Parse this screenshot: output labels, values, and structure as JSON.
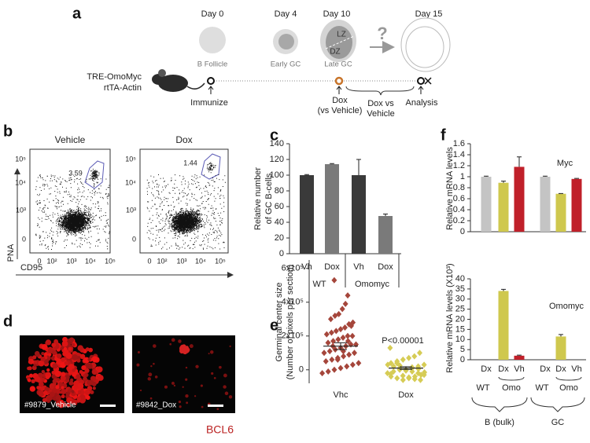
{
  "panel_labels": [
    "a",
    "b",
    "c",
    "d",
    "e",
    "f"
  ],
  "schematic": {
    "days": [
      "Day 0",
      "Day 4",
      "Day 10",
      "Day 15"
    ],
    "stages": [
      "B Follicle",
      "Early GC",
      "Late GC"
    ],
    "zones": [
      "LZ",
      "DZ"
    ],
    "question": "?",
    "mouse_lines": [
      "TRE-OmoMyc",
      "rtTA-Actin"
    ],
    "events": [
      "Immunize",
      "Dox",
      "(vs Vehicle)",
      "Dox vs",
      "Vehicle",
      "Analysis"
    ]
  },
  "flow": {
    "titles": [
      "Vehicle",
      "Dox"
    ],
    "gate_values": [
      "3.59",
      "1.44"
    ],
    "y_axis": "PNA",
    "x_axis": "CD95",
    "yticks": [
      "10⁵",
      "10⁴",
      "10³",
      "0"
    ],
    "xticks": [
      "0",
      "10²",
      "10³",
      "10⁴",
      "10⁵"
    ]
  },
  "images": {
    "captions": [
      "#9879_Vehicle",
      "#9842_Dox"
    ],
    "stain": "BCL6"
  },
  "chart_data": [
    {
      "type": "bar",
      "ylabel": [
        "Relative number",
        "of GC B-cells"
      ],
      "ylim": [
        0,
        140
      ],
      "yticks": [
        0,
        20,
        40,
        60,
        80,
        100,
        120,
        140
      ],
      "groups": [
        {
          "label": "WT",
          "categories": [
            "Vh",
            "Dox"
          ],
          "values": [
            100,
            114
          ],
          "errors": [
            0.8,
            0.8
          ],
          "colors": [
            "#3a3a3a",
            "#7a7a7a"
          ]
        },
        {
          "label": "Omomyc",
          "categories": [
            "Vh",
            "Dox"
          ],
          "values": [
            100,
            48
          ],
          "errors": [
            20,
            2.5
          ],
          "colors": [
            "#3a3a3a",
            "#7a7a7a"
          ]
        }
      ]
    },
    {
      "type": "strip",
      "ylabel": [
        "Germinal center size",
        "(Number of pixels per section)"
      ],
      "annotation": "P<0.00001",
      "ylim": [
        -80000,
        650000
      ],
      "yticks": [
        0,
        {
          "value": 200000,
          "label": "2x10⁵"
        },
        {
          "value": 400000,
          "label": "4x10⁵"
        },
        {
          "value": 600000,
          "label": "6x10⁵"
        }
      ],
      "series": [
        {
          "name": "Vhc",
          "color": "#a5463b",
          "mean": 140000,
          "sem": 20000,
          "values": [
            530000,
            440000,
            390000,
            360000,
            330000,
            320000,
            300000,
            280000,
            270000,
            250000,
            240000,
            230000,
            220000,
            210000,
            200000,
            200000,
            190000,
            180000,
            170000,
            160000,
            150000,
            150000,
            140000,
            130000,
            120000,
            110000,
            100000,
            100000,
            90000,
            80000,
            70000,
            60000,
            50000,
            40000,
            30000,
            20000,
            10000,
            0,
            -10000,
            -20000,
            260000,
            170000,
            110000,
            60000,
            140000
          ]
        },
        {
          "name": "Dox",
          "color": "#d6cc55",
          "mean": 10000,
          "sem": 8000,
          "values": [
            130000,
            100000,
            80000,
            70000,
            60000,
            50000,
            40000,
            30000,
            20000,
            10000,
            0,
            0,
            -10000,
            -20000,
            -30000,
            -40000,
            -50000,
            -60000,
            -50000,
            -40000,
            -30000,
            -20000,
            -10000,
            0,
            10000,
            20000,
            30000,
            -60000,
            -55000,
            -45000,
            -35000,
            40000,
            -25000,
            -15000,
            5000,
            15000,
            -5000,
            25000
          ]
        }
      ]
    },
    {
      "type": "bar",
      "title": "Myc",
      "ylabel": "Relative mRNA levels",
      "ylim": [
        0,
        1.6
      ],
      "yticks": [
        0,
        0.2,
        0.4,
        0.6,
        0.8,
        1,
        1.2,
        1.4,
        1.6
      ],
      "groups": [
        {
          "values": [
            1,
            0.89,
            1.18
          ],
          "errors": [
            0.01,
            0.03,
            0.18
          ],
          "colors": [
            "#c4c4c4",
            "#cfc84e",
            "#c0202a"
          ]
        },
        {
          "values": [
            1,
            0.69,
            0.96
          ],
          "errors": [
            0.01,
            0.005,
            0.01
          ],
          "colors": [
            "#c4c4c4",
            "#cfc84e",
            "#c0202a"
          ]
        }
      ]
    },
    {
      "type": "bar",
      "title": "Omomyc",
      "ylabel": "Relative mRNA levels (X10³)",
      "ylim": [
        0,
        40
      ],
      "yticks": [
        0,
        5,
        10,
        15,
        20,
        25,
        30,
        35,
        40
      ],
      "groups": [
        {
          "label": "B (bulk)",
          "categories": [
            "Dx",
            "Dx",
            "Vh"
          ],
          "sublabels": [
            "WT",
            "Omo"
          ],
          "values": [
            0,
            34,
            2
          ],
          "errors": [
            null,
            0.8,
            0.3
          ],
          "colors": [
            "#c4c4c4",
            "#cfc84e",
            "#c0202a"
          ]
        },
        {
          "label": "GC",
          "categories": [
            "Dx",
            "Dx",
            "Vh"
          ],
          "sublabels": [
            "WT",
            "Omo"
          ],
          "values": [
            0,
            11.5,
            0
          ],
          "errors": [
            null,
            1,
            null
          ],
          "colors": [
            "#c4c4c4",
            "#cfc84e",
            "#c0202a"
          ]
        }
      ]
    }
  ]
}
